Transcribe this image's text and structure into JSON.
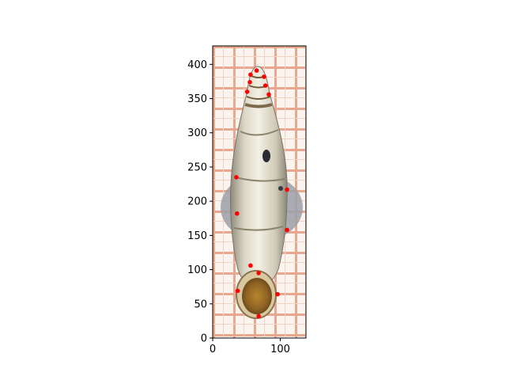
{
  "chart_data": {
    "type": "scatter",
    "title": "",
    "xlabel": "",
    "ylabel": "",
    "xlim": [
      0,
      138
    ],
    "ylim": [
      0,
      427
    ],
    "x_ticks": [
      0,
      100
    ],
    "y_ticks": [
      0,
      50,
      100,
      150,
      200,
      250,
      300,
      350,
      400
    ],
    "background_image": "photo of an elongated land snail shell (apex up, aperture down) on orange millimeter grid paper",
    "grid_paper_color": "#e8a890",
    "point_color": "#ff0000",
    "points": [
      {
        "x": 65,
        "y": 391
      },
      {
        "x": 56,
        "y": 385
      },
      {
        "x": 76,
        "y": 382
      },
      {
        "x": 55,
        "y": 374
      },
      {
        "x": 78,
        "y": 369
      },
      {
        "x": 51,
        "y": 360
      },
      {
        "x": 83,
        "y": 356
      },
      {
        "x": 35,
        "y": 235
      },
      {
        "x": 110,
        "y": 217
      },
      {
        "x": 36,
        "y": 182
      },
      {
        "x": 110,
        "y": 158
      },
      {
        "x": 56,
        "y": 106
      },
      {
        "x": 68,
        "y": 95
      },
      {
        "x": 37,
        "y": 69
      },
      {
        "x": 96,
        "y": 64
      },
      {
        "x": 68,
        "y": 32
      }
    ]
  }
}
